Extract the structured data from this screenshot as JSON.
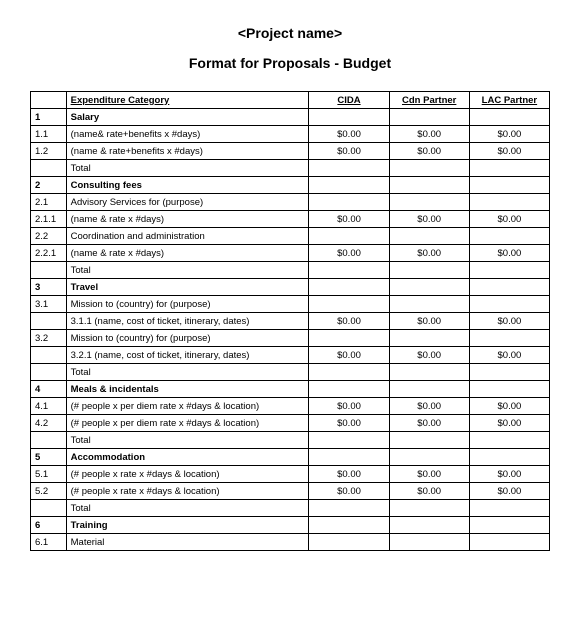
{
  "title": "<Project name>",
  "subtitle": "Format for Proposals - Budget",
  "headers": {
    "num": "",
    "category": "Expenditure Category",
    "cida": "CIDA",
    "cdn": "Cdn Partner",
    "lac": "LAC Partner"
  },
  "rows": [
    {
      "num": "1",
      "cat": "Salary",
      "bold": true,
      "cida": "",
      "cdn": "",
      "lac": ""
    },
    {
      "num": "1.1",
      "cat": "(name& rate+benefits x #days)",
      "bold": false,
      "cida": "$0.00",
      "cdn": "$0.00",
      "lac": "$0.00"
    },
    {
      "num": "1.2",
      "cat": "(name & rate+benefits x #days)",
      "bold": false,
      "cida": "$0.00",
      "cdn": "$0.00",
      "lac": "$0.00"
    },
    {
      "num": "",
      "cat": "Total",
      "bold": false,
      "cida": "",
      "cdn": "",
      "lac": ""
    },
    {
      "num": "2",
      "cat": "Consulting fees",
      "bold": true,
      "cida": "",
      "cdn": "",
      "lac": ""
    },
    {
      "num": "2.1",
      "cat": "Advisory Services for (purpose)",
      "bold": false,
      "cida": "",
      "cdn": "",
      "lac": ""
    },
    {
      "num": "2.1.1",
      "cat": "(name & rate x #days)",
      "bold": false,
      "cida": "$0.00",
      "cdn": "$0.00",
      "lac": "$0.00"
    },
    {
      "num": "2.2",
      "cat": "Coordination and administration",
      "bold": false,
      "cida": "",
      "cdn": "",
      "lac": ""
    },
    {
      "num": "2.2.1",
      "cat": "(name & rate x #days)",
      "bold": false,
      "cida": "$0.00",
      "cdn": "$0.00",
      "lac": "$0.00"
    },
    {
      "num": "",
      "cat": "Total",
      "bold": false,
      "cida": "",
      "cdn": "",
      "lac": ""
    },
    {
      "num": "3",
      "cat": "Travel",
      "bold": true,
      "cida": "",
      "cdn": "",
      "lac": ""
    },
    {
      "num": "3.1",
      "cat": "Mission to (country) for (purpose)",
      "bold": false,
      "cida": "",
      "cdn": "",
      "lac": ""
    },
    {
      "num": "",
      "cat": "3.1.1 (name, cost of ticket, itinerary, dates)",
      "bold": false,
      "cida": "$0.00",
      "cdn": "$0.00",
      "lac": "$0.00"
    },
    {
      "num": "3.2",
      "cat": "Mission to (country) for (purpose)",
      "bold": false,
      "cida": "",
      "cdn": "",
      "lac": ""
    },
    {
      "num": "",
      "cat": "3.2.1 (name, cost of ticket, itinerary, dates)",
      "bold": false,
      "cida": "$0.00",
      "cdn": "$0.00",
      "lac": "$0.00"
    },
    {
      "num": "",
      "cat": "Total",
      "bold": false,
      "cida": "",
      "cdn": "",
      "lac": ""
    },
    {
      "num": "4",
      "cat": "Meals & incidentals",
      "bold": true,
      "cida": "",
      "cdn": "",
      "lac": ""
    },
    {
      "num": "4.1",
      "cat": "(# people x per diem rate x #days & location)",
      "bold": false,
      "cida": "$0.00",
      "cdn": "$0.00",
      "lac": "$0.00"
    },
    {
      "num": "4.2",
      "cat": "(# people x per diem rate x #days & location)",
      "bold": false,
      "cida": "$0.00",
      "cdn": "$0.00",
      "lac": "$0.00"
    },
    {
      "num": "",
      "cat": "Total",
      "bold": false,
      "cida": "",
      "cdn": "",
      "lac": ""
    },
    {
      "num": "5",
      "cat": "Accommodation",
      "bold": true,
      "cida": "",
      "cdn": "",
      "lac": ""
    },
    {
      "num": "5.1",
      "cat": "(# people x rate x #days & location)",
      "bold": false,
      "cida": "$0.00",
      "cdn": "$0.00",
      "lac": "$0.00"
    },
    {
      "num": "5.2",
      "cat": "(# people x rate x #days & location)",
      "bold": false,
      "cida": "$0.00",
      "cdn": "$0.00",
      "lac": "$0.00"
    },
    {
      "num": "",
      "cat": "Total",
      "bold": false,
      "cida": "",
      "cdn": "",
      "lac": ""
    },
    {
      "num": "6",
      "cat": "Training",
      "bold": true,
      "cida": "",
      "cdn": "",
      "lac": ""
    },
    {
      "num": "6.1",
      "cat": "Material",
      "bold": false,
      "cida": "",
      "cdn": "",
      "lac": ""
    }
  ]
}
